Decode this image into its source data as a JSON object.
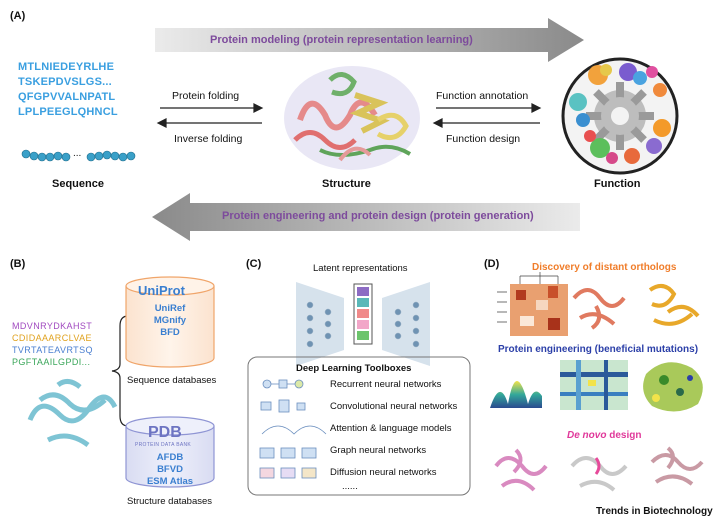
{
  "panel_a": {
    "label": "(A)",
    "top_arrow": "Protein modeling (protein representation learning)",
    "bottom_arrow": "Protein engineering and protein design (protein generation)",
    "sequence_lines": [
      "MTLNIEDEYRLHE",
      "TSKEPDVSLGS...",
      "QFGPVVALNPATL",
      "LPLPEEGLQHNCL"
    ],
    "sequence_ellipsis": "...",
    "protein_folding": "Protein folding",
    "inverse_folding": "Inverse folding",
    "function_annotation": "Function annotation",
    "function_design": "Function design",
    "sequence_label": "Sequence",
    "structure_label": "Structure",
    "function_label": "Function"
  },
  "panel_b": {
    "label": "(B)",
    "msa_lines": [
      "MDVNRYDKAHST",
      "CDIDAAARCLVAE",
      "TVRTATEAVRTSQ",
      "PGFTAAILGPDI..."
    ],
    "uniprot_logo": "UniProt",
    "sequence_db_items": [
      "UniRef",
      "MGnify",
      "BFD"
    ],
    "sequence_db_caption": "Sequence databases",
    "pdb_logo": "PDB",
    "pdb_sub": "PROTEIN DATA BANK",
    "structure_db_items": [
      "AFDB",
      "BFVD",
      "ESM Atlas"
    ],
    "structure_db_caption": "Structure databases"
  },
  "panel_c": {
    "label": "(C)",
    "latent_label": "Latent representations",
    "toolbox_title": "Deep Learning Toolboxes",
    "toolbox_items": [
      "Recurrent neural networks",
      "Convolutional neural networks",
      "Attention & language models",
      "Graph neural networks",
      "Diffusion neural networks"
    ],
    "toolbox_more": "......"
  },
  "panel_d": {
    "label": "(D)",
    "title1": "Discovery of distant orthologs",
    "title2": "Protein engineering (beneficial mutations)",
    "title3_italic": "De novo",
    "title3_rest": " design",
    "footer": "Trends in Biotechnology",
    "colors": {
      "orange": "#f07d2a",
      "blue": "#2b3fa8",
      "pink": "#e0389a"
    }
  }
}
